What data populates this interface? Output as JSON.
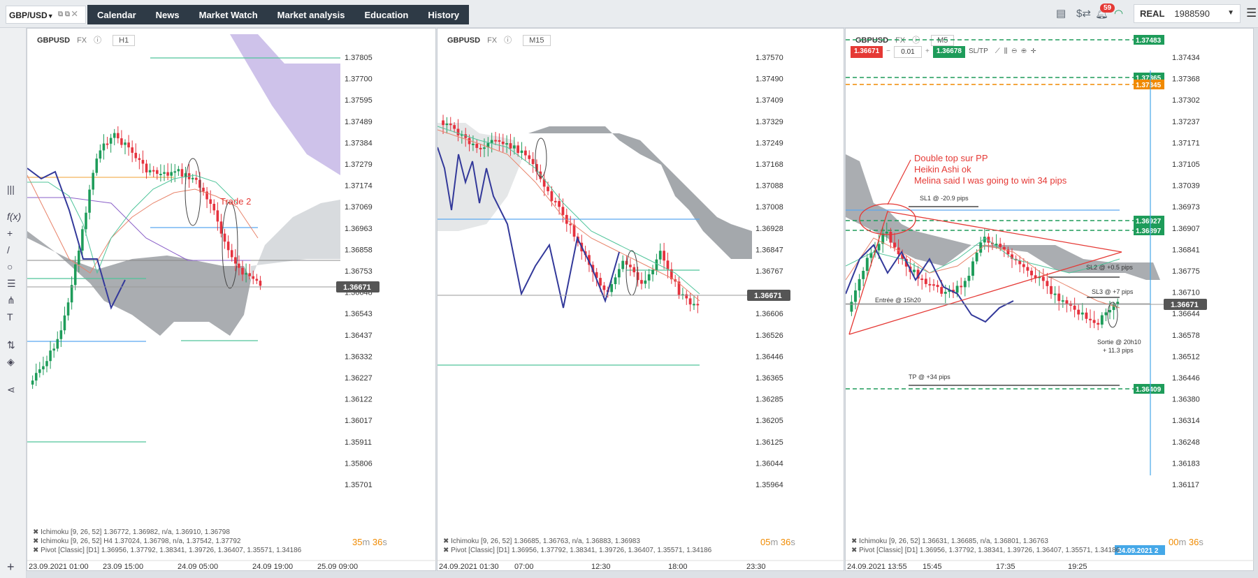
{
  "header": {
    "symbol": "GBP/USD",
    "tabs": [
      "Calendar",
      "News",
      "Market Watch",
      "Market analysis",
      "Education",
      "History"
    ],
    "notifications": "59",
    "account_type": "REAL",
    "account_id": "1988590"
  },
  "panels": [
    {
      "symbol": "GBPUSD",
      "type": "FX",
      "timeframe": "H1",
      "prices": [
        "1.37805",
        "1.37700",
        "1.37595",
        "1.37489",
        "1.37384",
        "1.37279",
        "1.37174",
        "1.37069",
        "1.36963",
        "1.36858",
        "1.36753",
        "1.36648",
        "1.36543",
        "1.36437",
        "1.36332",
        "1.36227",
        "1.36122",
        "1.36017",
        "1.35911",
        "1.35806",
        "1.35701"
      ],
      "current_price": "1.36671",
      "times": [
        "23.09.2021 01:00",
        "23.09 15:00",
        "24.09 05:00",
        "24.09 19:00",
        "25.09 09:00"
      ],
      "legend": [
        "✖ Ichimoku [9, 26, 52] 1.36772, 1.36982, n/a, 1.36910, 1.36798",
        "✖ Ichimoku [9, 26, 52] H4 1.37024, 1.36798, n/a, 1.37542, 1.37792",
        "✖ Pivot [Classic] [D1] 1.36956, 1.37792, 1.38341, 1.39726, 1.36407, 1.35571, 1.34186"
      ],
      "timer": {
        "m": "35",
        "s": "36"
      },
      "annotation": "Trade 2"
    },
    {
      "symbol": "GBPUSD",
      "type": "FX",
      "timeframe": "M15",
      "prices": [
        "1.37570",
        "1.37490",
        "1.37409",
        "1.37329",
        "1.37249",
        "1.37168",
        "1.37088",
        "1.37008",
        "1.36928",
        "1.36847",
        "1.36767",
        "1.36687",
        "1.36606",
        "1.36526",
        "1.36446",
        "1.36365",
        "1.36285",
        "1.36205",
        "1.36125",
        "1.36044",
        "1.35964"
      ],
      "current_price": "1.36671",
      "times": [
        "24.09.2021 01:30",
        "07:00",
        "12:30",
        "18:00",
        "23:30"
      ],
      "legend": [
        "✖ Ichimoku [9, 26, 52] 1.36685, 1.36763, n/a, 1.36883, 1.36983",
        "✖ Pivot [Classic] [D1] 1.36956, 1.37792, 1.38341, 1.39726, 1.36407, 1.35571, 1.34186"
      ],
      "timer": {
        "m": "05",
        "s": "36"
      }
    },
    {
      "symbol": "GBPUSD",
      "type": "FX",
      "timeframe": "M5",
      "prices": [
        "1.37434",
        "1.37368",
        "1.37302",
        "1.37237",
        "1.37171",
        "1.37105",
        "1.37039",
        "1.36973",
        "1.36907",
        "1.36841",
        "1.36775",
        "1.36710",
        "1.36644",
        "1.36578",
        "1.36512",
        "1.36446",
        "1.36380",
        "1.36314",
        "1.36248",
        "1.36183",
        "1.36117"
      ],
      "current_price": "1.36671",
      "times": [
        "24.09.2021 13:55",
        "15:45",
        "17:35",
        "19:25"
      ],
      "date_tag": "24.09.2021 2",
      "legend": [
        "✖ Ichimoku [9, 26, 52] 1.36631, 1.36685, n/a, 1.36801, 1.36763",
        "✖ Pivot [Classic] [D1] 1.36956, 1.37792, 1.38341, 1.39726, 1.36407, 1.35571, 1.34186"
      ],
      "timer": {
        "m": "00",
        "s": "36"
      },
      "trade": {
        "sell": "1.36671",
        "lot": "0.01",
        "buy": "1.36678",
        "sltp": "SL/TP"
      },
      "levels": [
        "1.37483",
        "1.37365",
        "1.37345",
        "1.36927",
        "1.36897",
        "1.36409"
      ],
      "notes": {
        "line1": "Double top sur PP",
        "line2": "Heikin Ashi ok",
        "line3": " Melina said I was going to win 34 pips",
        "sl1": "SL1 @ -20.9 pips",
        "sl2": "SL2 @ +0.5 pips",
        "sl3": "SL3 @ +7 pips",
        "entry": "Entrée @ 15h20",
        "exit1": "Sortie @ 20h10",
        "exit2": "+ 11.3 pips",
        "tp": "TP @ +34 pips"
      }
    }
  ],
  "colors": {
    "bull": "#1e9c5a",
    "bear": "#e5323e",
    "cloud_gray": "#8d9297",
    "cloud_purple": "#a68fd8",
    "line_blue": "#33399a",
    "pivot_blue": "#5aa8f0",
    "pivot_green": "#4fc49a",
    "accent_red": "#e53935",
    "accent_orange": "#f08a00"
  }
}
